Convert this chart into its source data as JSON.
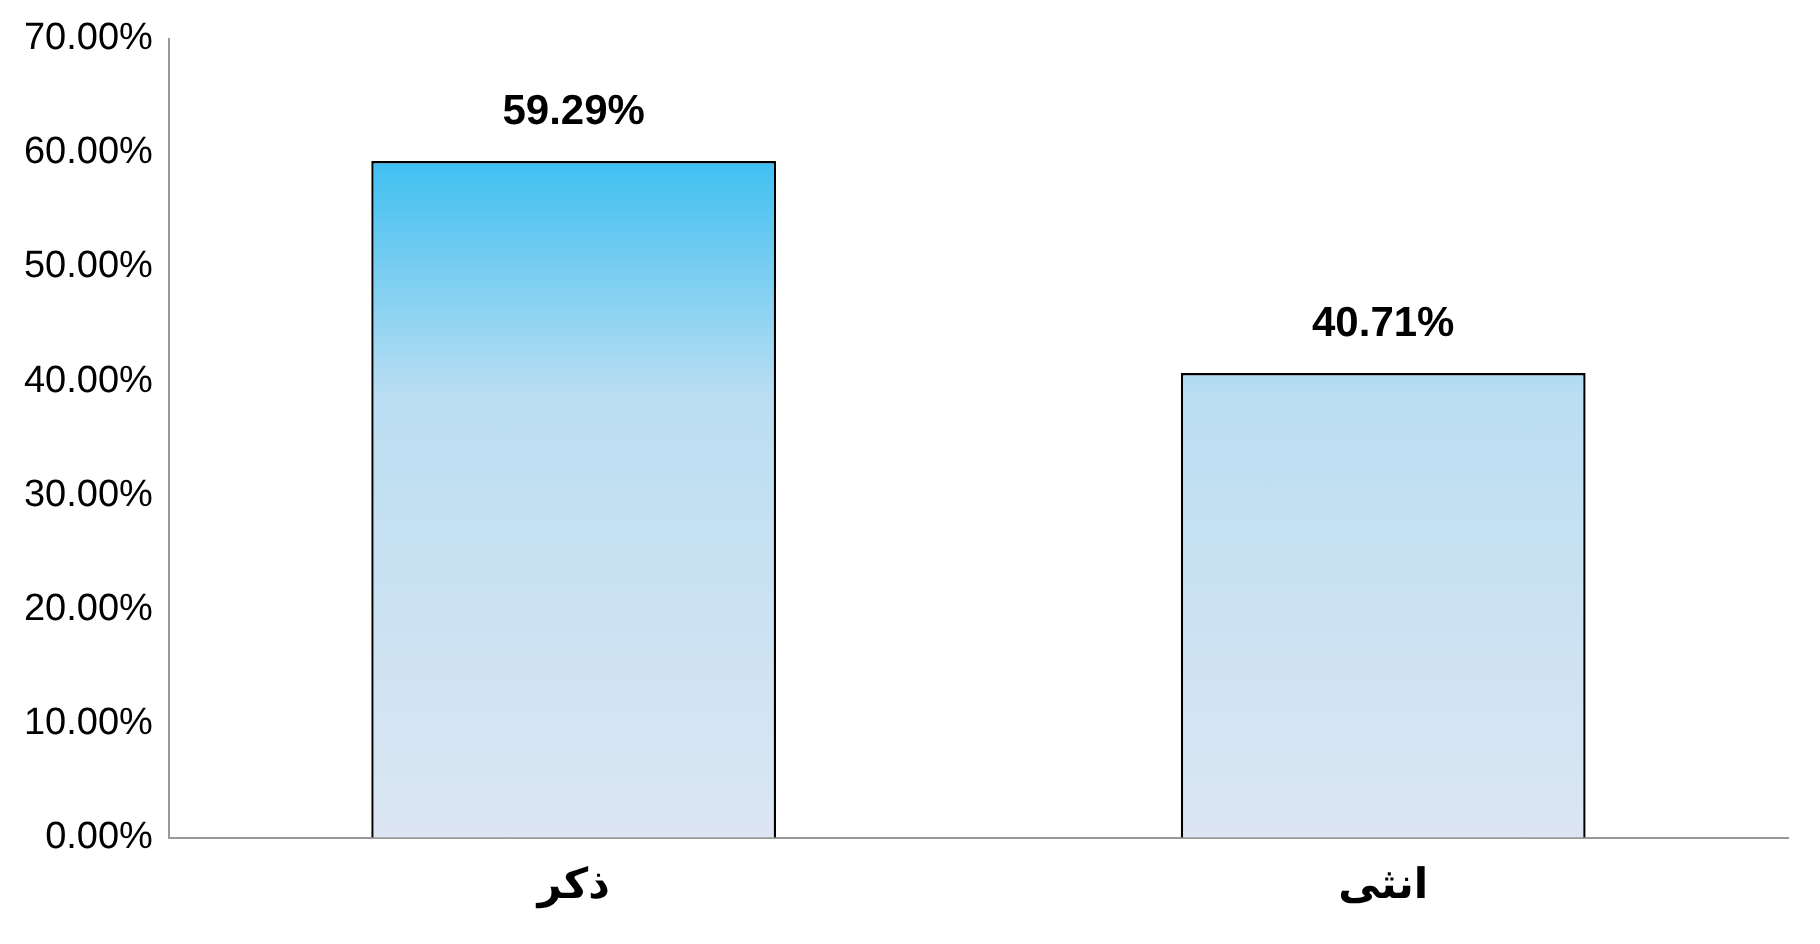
{
  "chart_data": {
    "type": "bar",
    "categories": [
      "ذكر",
      "انثى"
    ],
    "values": [
      59.29,
      40.71
    ],
    "value_labels": [
      "59.29%",
      "40.71%"
    ],
    "color": "#00b0f0",
    "ylim": [
      0,
      70
    ],
    "yticks": [
      {
        "value": 0,
        "label": "0.00%"
      },
      {
        "value": 10,
        "label": "10.00%"
      },
      {
        "value": 20,
        "label": "20.00%"
      },
      {
        "value": 30,
        "label": "30.00%"
      },
      {
        "value": 40,
        "label": "40.00%"
      },
      {
        "value": 50,
        "label": "50.00%"
      },
      {
        "value": 60,
        "label": "60.00%"
      },
      {
        "value": 70,
        "label": "70.00%"
      }
    ],
    "grid": false,
    "legend": false
  }
}
